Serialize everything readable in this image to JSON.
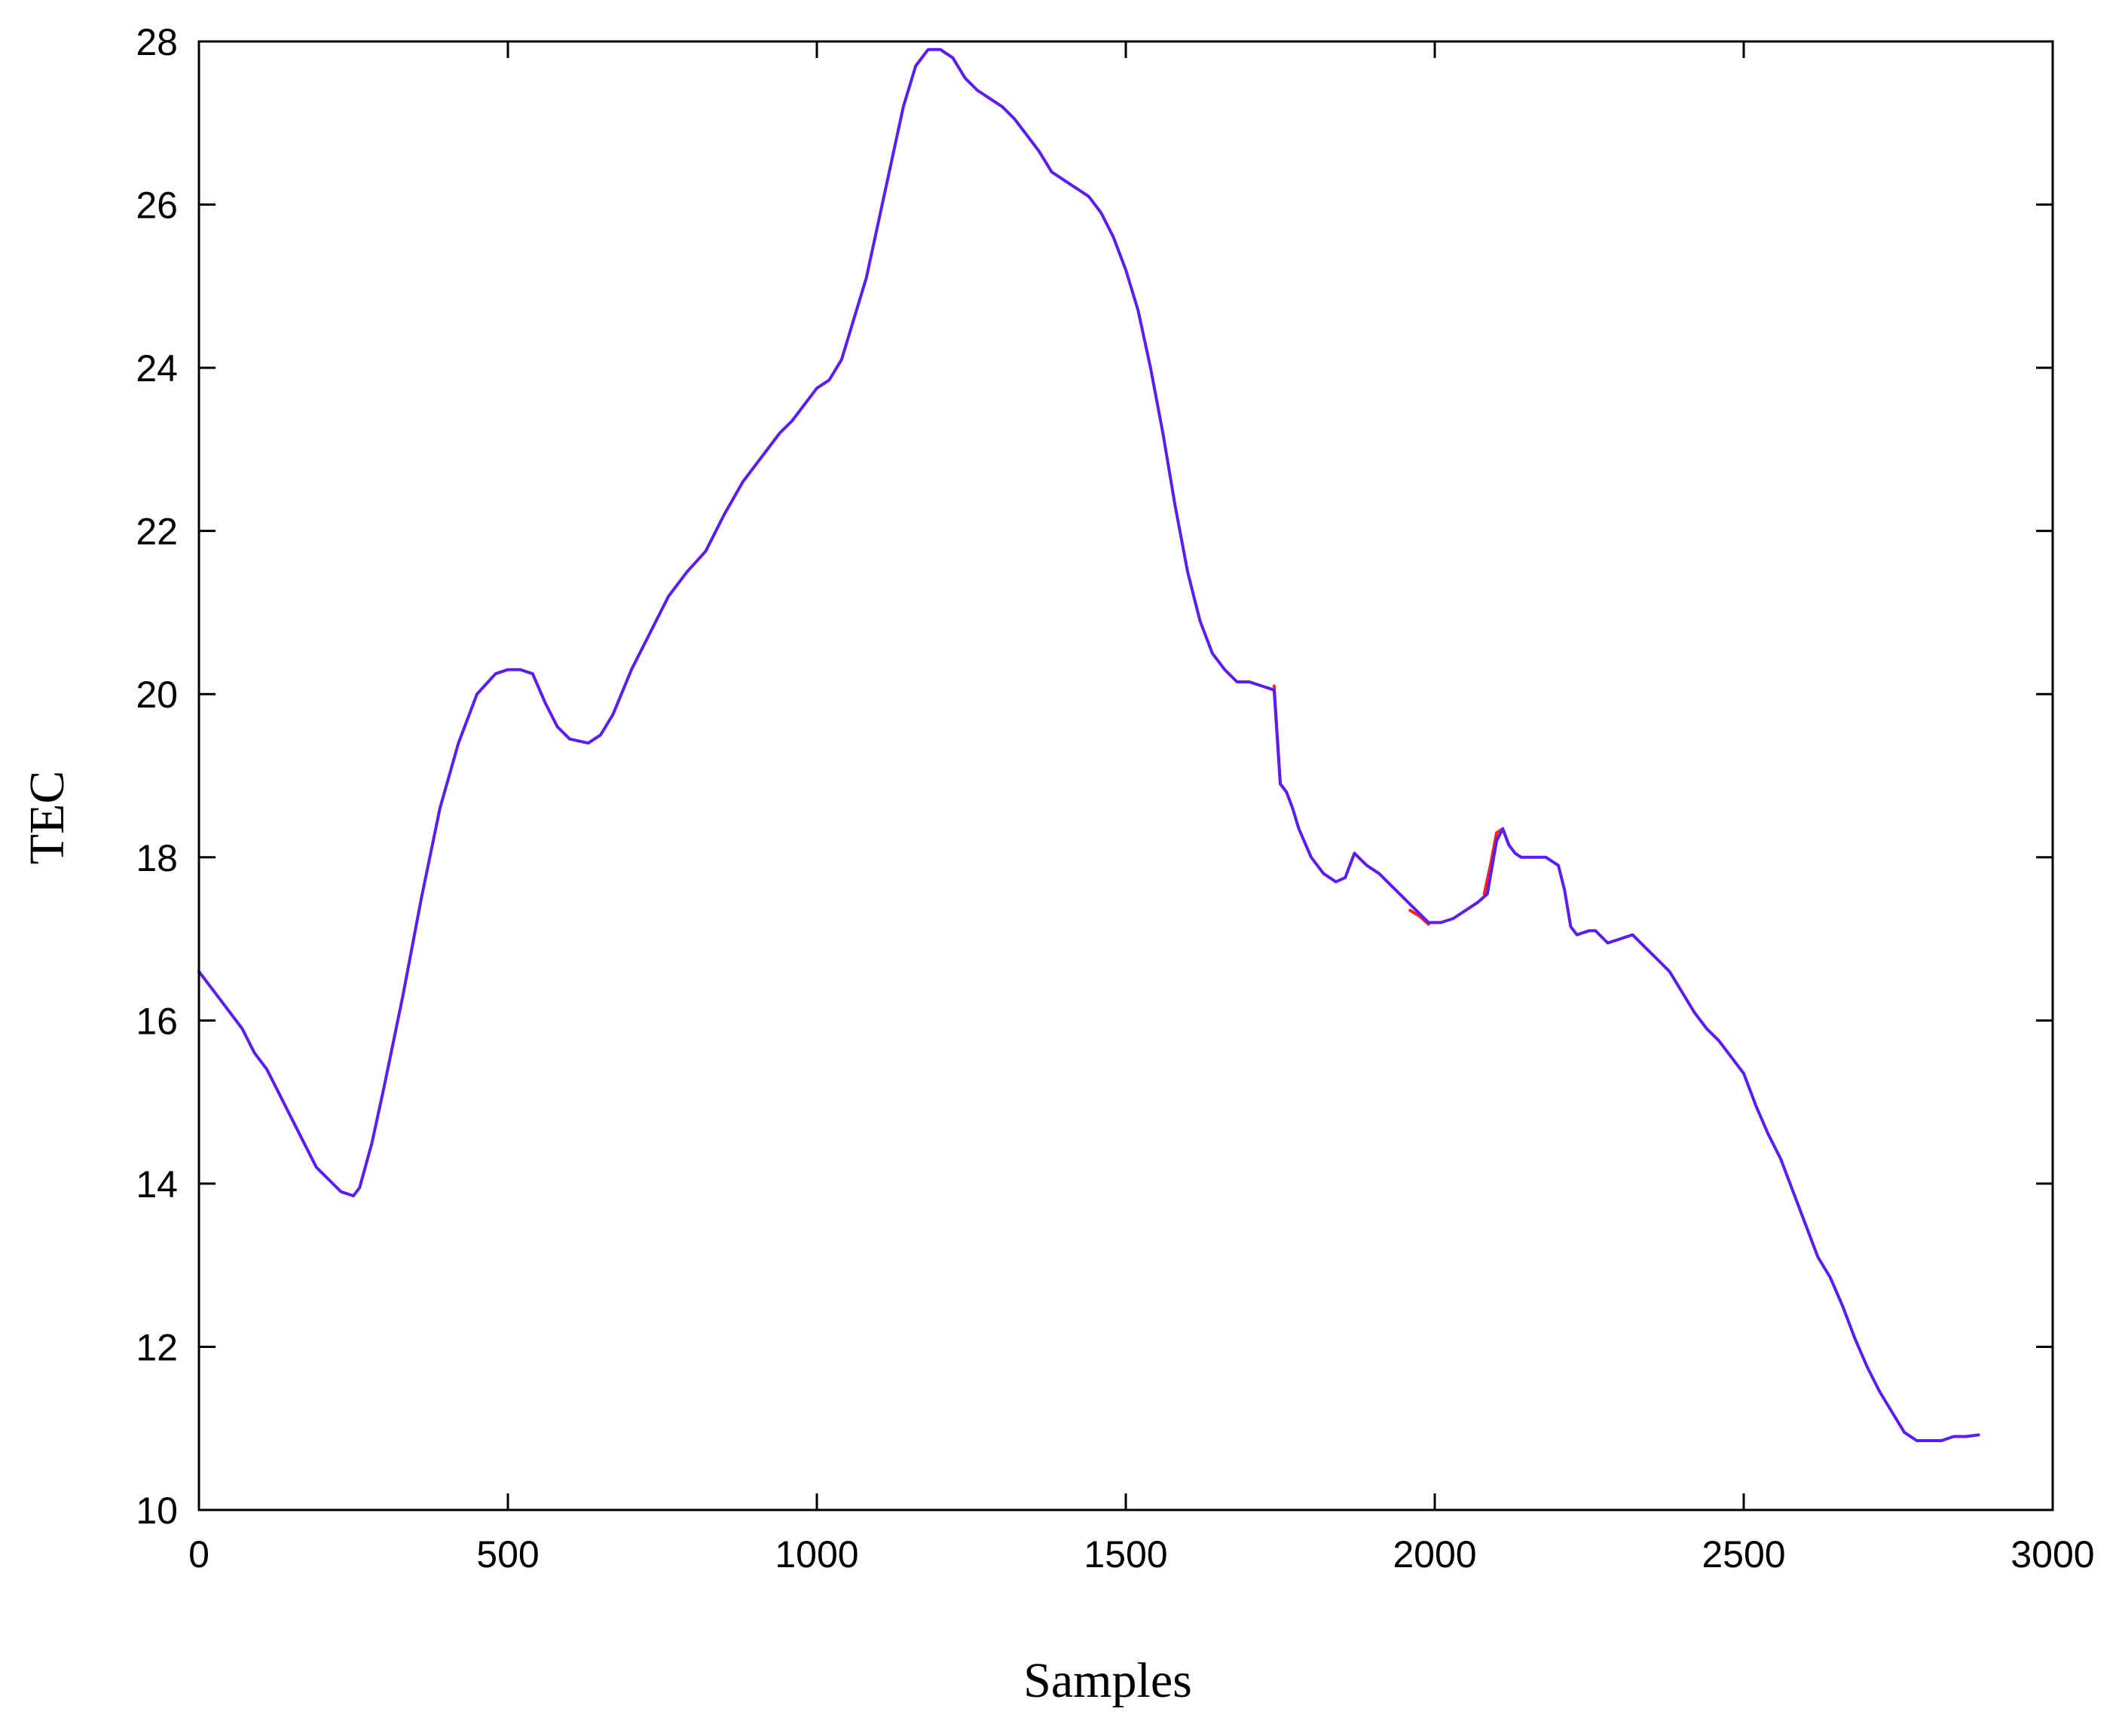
{
  "colors": {
    "background": "#ffffff",
    "axis": "#000000",
    "original": "#ff2020",
    "reconstructed": "#5a1ef0"
  },
  "chart_data": {
    "type": "line",
    "title": "",
    "xlabel": "Samples",
    "ylabel": "TEC",
    "xlim": [
      0,
      3000
    ],
    "ylim": [
      10,
      28
    ],
    "xticks": [
      0,
      500,
      1000,
      1500,
      2000,
      2500,
      3000
    ],
    "yticks": [
      10,
      12,
      14,
      16,
      18,
      20,
      22,
      24,
      26,
      28
    ],
    "grid": false,
    "legend": "none",
    "series": [
      {
        "color": "#ff2020",
        "x": [
          1740,
          1745,
          1750,
          1760
        ],
        "y": [
          20.1,
          19.5,
          18.9,
          18.8
        ]
      },
      {
        "color": "#ff2020",
        "x": [
          1960,
          1975,
          1990
        ],
        "y": [
          17.35,
          17.28,
          17.18
        ]
      },
      {
        "color": "#ff2020",
        "x": [
          2080,
          2090,
          2100,
          2110,
          2120
        ],
        "y": [
          17.55,
          17.9,
          18.3,
          18.35,
          18.15
        ]
      },
      {
        "color": "#5a1ef0",
        "x": [
          0,
          10,
          30,
          50,
          70,
          90,
          110,
          130,
          150,
          170,
          190,
          210,
          230,
          250,
          260,
          280,
          300,
          330,
          360,
          390,
          420,
          450,
          480,
          500,
          520,
          540,
          560,
          580,
          600,
          630,
          650,
          670,
          700,
          730,
          760,
          790,
          820,
          850,
          880,
          910,
          940,
          960,
          980,
          1000,
          1020,
          1040,
          1060,
          1080,
          1100,
          1120,
          1140,
          1160,
          1180,
          1200,
          1220,
          1240,
          1260,
          1280,
          1300,
          1320,
          1340,
          1360,
          1380,
          1400,
          1420,
          1440,
          1460,
          1480,
          1500,
          1520,
          1540,
          1560,
          1580,
          1600,
          1620,
          1640,
          1660,
          1680,
          1700,
          1720,
          1740,
          1750,
          1760,
          1770,
          1780,
          1800,
          1820,
          1840,
          1855,
          1870,
          1890,
          1910,
          1930,
          1950,
          1970,
          1990,
          2010,
          2030,
          2050,
          2070,
          2085,
          2100,
          2110,
          2120,
          2130,
          2140,
          2160,
          2180,
          2200,
          2210,
          2220,
          2230,
          2250,
          2260,
          2280,
          2300,
          2320,
          2340,
          2360,
          2380,
          2400,
          2420,
          2440,
          2460,
          2480,
          2500,
          2520,
          2540,
          2560,
          2580,
          2600,
          2620,
          2640,
          2660,
          2680,
          2700,
          2720,
          2740,
          2760,
          2780,
          2800,
          2820,
          2840,
          2860,
          2880
        ],
        "y": [
          16.6,
          16.5,
          16.3,
          16.1,
          15.9,
          15.6,
          15.4,
          15.1,
          14.8,
          14.5,
          14.2,
          14.05,
          13.9,
          13.85,
          13.95,
          14.5,
          15.2,
          16.3,
          17.5,
          18.6,
          19.4,
          20.0,
          20.25,
          20.3,
          20.3,
          20.25,
          19.9,
          19.6,
          19.45,
          19.4,
          19.5,
          19.75,
          20.3,
          20.75,
          21.2,
          21.5,
          21.75,
          22.2,
          22.6,
          22.9,
          23.2,
          23.35,
          23.55,
          23.75,
          23.85,
          24.1,
          24.6,
          25.1,
          25.8,
          26.5,
          27.2,
          27.7,
          27.9,
          27.9,
          27.8,
          27.55,
          27.4,
          27.3,
          27.2,
          27.05,
          26.85,
          26.65,
          26.4,
          26.3,
          26.2,
          26.1,
          25.9,
          25.6,
          25.2,
          24.7,
          24.0,
          23.2,
          22.3,
          21.5,
          20.9,
          20.5,
          20.3,
          20.15,
          20.15,
          20.1,
          20.05,
          18.9,
          18.8,
          18.6,
          18.35,
          18.0,
          17.8,
          17.7,
          17.75,
          18.05,
          17.9,
          17.8,
          17.65,
          17.5,
          17.35,
          17.2,
          17.2,
          17.25,
          17.35,
          17.45,
          17.55,
          18.2,
          18.35,
          18.15,
          18.05,
          18.0,
          18.0,
          18.0,
          17.9,
          17.6,
          17.15,
          17.05,
          17.1,
          17.1,
          16.95,
          17.0,
          17.05,
          16.9,
          16.75,
          16.6,
          16.35,
          16.1,
          15.9,
          15.75,
          15.55,
          15.35,
          14.95,
          14.6,
          14.3,
          13.9,
          13.5,
          13.1,
          12.85,
          12.5,
          12.1,
          11.75,
          11.45,
          11.2,
          10.95,
          10.85,
          10.85,
          10.85,
          10.9,
          10.9,
          10.92
        ]
      }
    ]
  }
}
